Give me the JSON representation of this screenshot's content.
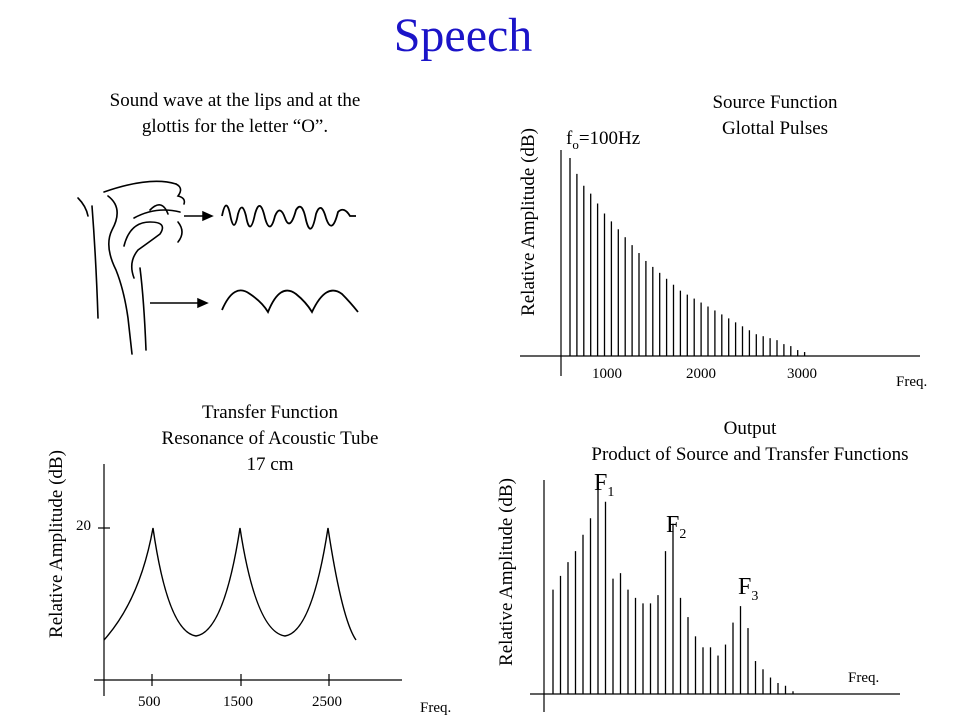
{
  "title": "Speech",
  "panel_lips": {
    "caption_line1": "Sound wave at the lips and at the",
    "caption_line2": "glottis for the letter “O”."
  },
  "panel_source": {
    "title_line1": "Source Function",
    "title_line2": "Glottal Pulses",
    "ylabel": "Relative Amplitude (dB)",
    "annotation_f": "f",
    "annotation_sub": "o",
    "annotation_rest": "=100Hz",
    "xticks": [
      "1000",
      "2000",
      "3000"
    ],
    "xlabel": "Freq."
  },
  "panel_transfer": {
    "title_line1": "Transfer Function",
    "title_line2": "Resonance of Acoustic Tube",
    "title_line3": "17 cm",
    "ylabel": "Relative Amplitude (dB)",
    "ytick": "20",
    "xticks": [
      "500",
      "1500",
      "2500"
    ],
    "xlabel": "Freq."
  },
  "panel_output": {
    "title_line1": "Output",
    "title_line2": "Product of Source and Transfer Functions",
    "ylabel": "Relative Amplitude (dB)",
    "formants": [
      {
        "letter": "F",
        "sub": "1"
      },
      {
        "letter": "F",
        "sub": "2"
      },
      {
        "letter": "F",
        "sub": "3"
      }
    ],
    "xlabel": "Freq."
  },
  "chart_data": [
    {
      "type": "bar",
      "name": "source",
      "x_step": 100,
      "x": [
        100,
        200,
        300,
        400,
        500,
        600,
        700,
        800,
        900,
        1000,
        1100,
        1200,
        1300,
        1400,
        1500,
        1600,
        1700,
        1800,
        1900,
        2000,
        2100,
        2200,
        2300,
        2400,
        2500,
        2600,
        2700,
        2800,
        2900,
        3000,
        3100,
        3200,
        3300,
        3400,
        3500
      ],
      "values": [
        100,
        92,
        86,
        82,
        77,
        72,
        68,
        64,
        60,
        56,
        52,
        48,
        45,
        42,
        39,
        36,
        33,
        31,
        29,
        27,
        25,
        23,
        21,
        19,
        17,
        15,
        13,
        11,
        10,
        9,
        8,
        6,
        5,
        3,
        2
      ],
      "xticks": [
        1000,
        2000,
        3000
      ]
    },
    {
      "type": "line",
      "name": "transfer",
      "peaks_hz": [
        500,
        1500,
        2500
      ],
      "ytick": 20,
      "xticks": [
        500,
        1500,
        2500
      ]
    },
    {
      "type": "bar",
      "name": "output",
      "values": [
        38,
        43,
        48,
        52,
        58,
        64,
        75,
        70,
        42,
        44,
        38,
        35,
        33,
        33,
        36,
        52,
        62,
        35,
        28,
        21,
        17,
        17,
        14,
        18,
        26,
        32,
        24,
        12,
        9,
        6,
        4,
        3,
        1
      ]
    }
  ]
}
